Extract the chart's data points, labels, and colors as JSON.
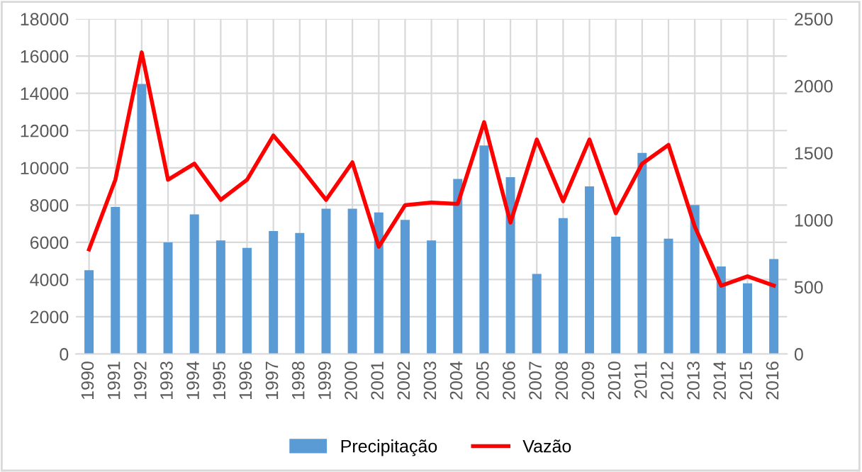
{
  "chart_data": {
    "type": "bar",
    "categories": [
      "1990",
      "1991",
      "1992",
      "1993",
      "1994",
      "1995",
      "1996",
      "1997",
      "1998",
      "1999",
      "2000",
      "2001",
      "2002",
      "2003",
      "2004",
      "2005",
      "2006",
      "2007",
      "2008",
      "2009",
      "2010",
      "2011",
      "2012",
      "2013",
      "2014",
      "2015",
      "2016"
    ],
    "series": [
      {
        "name": "Precipitação",
        "color": "#5b9bd5",
        "values": [
          4500,
          7900,
          14500,
          6000,
          7500,
          6100,
          5700,
          6600,
          6500,
          7800,
          7800,
          7600,
          7200,
          6100,
          9400,
          11200,
          9500,
          4300,
          7300,
          9000,
          6300,
          10800,
          6200,
          8000,
          4700,
          3800,
          5100
        ]
      },
      {
        "name": "Vazão",
        "type": "line",
        "axis": "y2",
        "color": "#ff0000",
        "values": [
          780,
          1300,
          2250,
          1300,
          1420,
          1150,
          1300,
          1630,
          1400,
          1150,
          1430,
          800,
          1110,
          1130,
          1120,
          1730,
          980,
          1600,
          1140,
          1600,
          1050,
          1420,
          1560,
          950,
          510,
          580,
          510
        ]
      }
    ],
    "ylim": [
      0,
      18000
    ],
    "yticks": [
      0,
      2000,
      4000,
      6000,
      8000,
      10000,
      12000,
      14000,
      16000,
      18000
    ],
    "y2lim": [
      0,
      2500
    ],
    "y2ticks": [
      0,
      500,
      1000,
      1500,
      2000,
      2500
    ],
    "grid": true,
    "legend": "bottom"
  }
}
